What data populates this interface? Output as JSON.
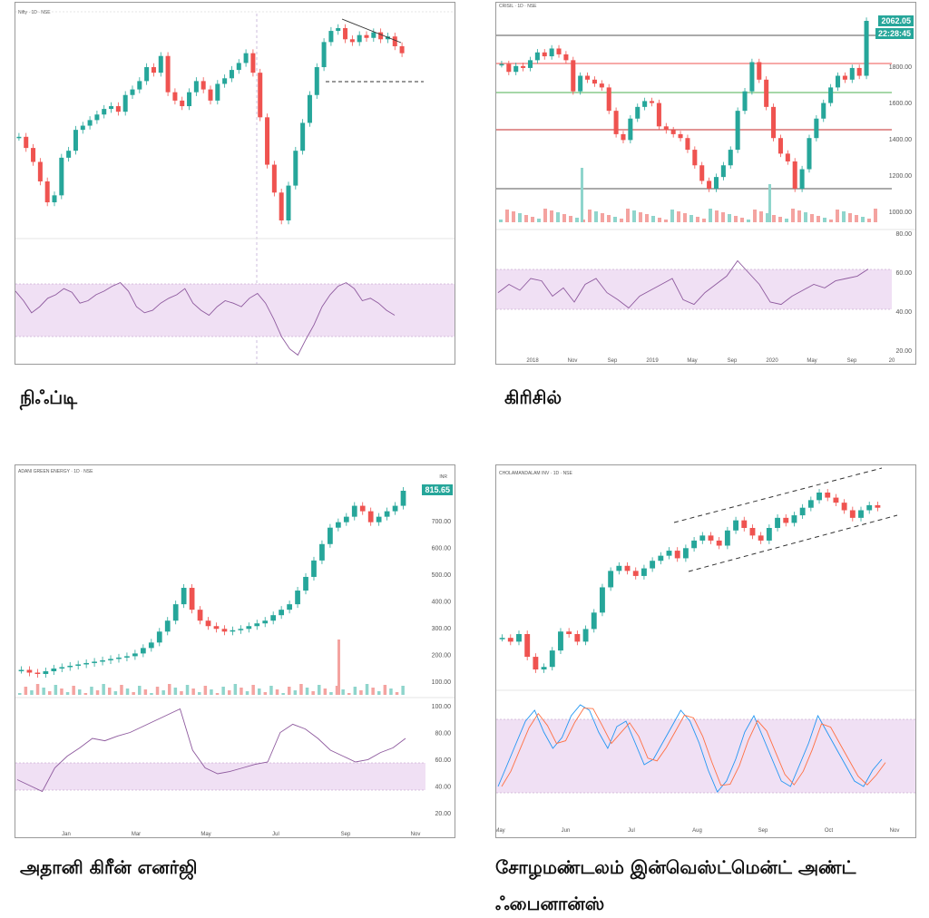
{
  "captions": {
    "p1": "நிஃப்டி",
    "p2": "கிரிசில்",
    "p3": "அதானி கிரீன் எனர்ஜி",
    "p4_line1": "சோழமண்டலம் இன்வெஸ்ட்மென்ட் அண்ட்",
    "p4_line2": "ஃபைனான்ஸ்"
  },
  "colors": {
    "up": "#26a69a",
    "down": "#ef5350",
    "rsi": "#8e5a9e",
    "band": "#f0e0f4"
  },
  "chart_data": [
    {
      "name": "nifty",
      "type": "candlestick",
      "header": "Nifty · 1D · NSE",
      "indicator": "RSI",
      "price": [
        11300,
        11220,
        11120,
        10980,
        10830,
        10880,
        11150,
        11200,
        11350,
        11380,
        11420,
        11460,
        11500,
        11520,
        11480,
        11600,
        11640,
        11700,
        11800,
        11760,
        11880,
        11620,
        11560,
        11520,
        11620,
        11700,
        11640,
        11560,
        11680,
        11720,
        11780,
        11830,
        11900,
        11760,
        11440,
        11100,
        10900,
        10700,
        10950,
        11200,
        11400,
        11600,
        11800,
        11980,
        12060,
        12080,
        12000,
        11980,
        12030,
        12010,
        12050,
        12000,
        12020,
        11950,
        11900
      ],
      "rsi": [
        58,
        50,
        40,
        45,
        52,
        55,
        60,
        57,
        48,
        50,
        55,
        58,
        62,
        65,
        58,
        45,
        40,
        42,
        48,
        52,
        55,
        60,
        48,
        42,
        38,
        45,
        50,
        48,
        45,
        52,
        56,
        48,
        35,
        20,
        10,
        5,
        18,
        30,
        45,
        55,
        62,
        65,
        60,
        50,
        52,
        48,
        42,
        38
      ],
      "rsi_range": [
        0,
        100
      ]
    },
    {
      "name": "crisil",
      "type": "candlestick",
      "header": "CRISIL · 1D · NSE",
      "indicator": "RSI",
      "last_price": "2062.05",
      "timer": "22:28:45",
      "y_ticks": [
        "1800.00",
        "1600.00",
        "1400.00",
        "1200.00",
        "1000.00"
      ],
      "rsi_ticks": [
        "80.00",
        "60.00",
        "40.00",
        "20.00"
      ],
      "x_ticks": [
        "2018",
        "Nov",
        "Sep",
        "2019",
        "May",
        "Sep",
        "2020",
        "May",
        "Sep",
        "20"
      ],
      "price": [
        1840,
        1800,
        1830,
        1820,
        1860,
        1900,
        1880,
        1920,
        1890,
        1860,
        1700,
        1780,
        1760,
        1740,
        1720,
        1600,
        1480,
        1450,
        1560,
        1620,
        1650,
        1640,
        1520,
        1500,
        1480,
        1460,
        1400,
        1320,
        1240,
        1200,
        1260,
        1320,
        1400,
        1600,
        1700,
        1850,
        1760,
        1620,
        1460,
        1380,
        1340,
        1200,
        1300,
        1460,
        1560,
        1640,
        1720,
        1780,
        1760,
        1820,
        1780,
        2062
      ],
      "rsi": [
        48,
        55,
        50,
        60,
        58,
        45,
        52,
        40,
        55,
        60,
        48,
        42,
        35,
        45,
        50,
        55,
        60,
        42,
        38,
        48,
        55,
        62,
        75,
        65,
        55,
        40,
        38,
        45,
        50,
        55,
        52,
        58,
        60,
        62,
        68
      ]
    },
    {
      "name": "adani-green",
      "type": "candlestick",
      "header": "ADANI GREEN ENERGY · 1D · NSE",
      "indicator": "RSI",
      "last_price": "815.65",
      "currency": "INR",
      "y_ticks": [
        "700.00",
        "600.00",
        "500.00",
        "400.00",
        "300.00",
        "200.00",
        "100.00"
      ],
      "rsi_ticks": [
        "100.00",
        "80.00",
        "60.00",
        "40.00",
        "20.00"
      ],
      "x_ticks": [
        "Jan",
        "Mar",
        "May",
        "Jul",
        "Sep",
        "Nov"
      ],
      "price": [
        160,
        150,
        145,
        155,
        165,
        170,
        175,
        180,
        185,
        190,
        195,
        200,
        205,
        210,
        220,
        240,
        260,
        300,
        340,
        400,
        460,
        380,
        340,
        320,
        310,
        300,
        305,
        310,
        320,
        330,
        340,
        360,
        380,
        400,
        450,
        500,
        560,
        620,
        680,
        700,
        720,
        760,
        740,
        700,
        720,
        740,
        760,
        815
      ],
      "rsi": [
        35,
        30,
        25,
        45,
        55,
        62,
        70,
        68,
        72,
        75,
        80,
        85,
        90,
        95,
        60,
        45,
        40,
        42,
        45,
        48,
        50,
        75,
        82,
        78,
        70,
        60,
        55,
        50,
        52,
        58,
        62,
        70
      ]
    },
    {
      "name": "cholamandalam",
      "type": "candlestick",
      "header": "CHOLAMANDALAM INV · 1D · NSE",
      "indicator": "Stoch",
      "x_ticks": [
        "May",
        "Jun",
        "Jul",
        "Aug",
        "Sep",
        "Oct",
        "Nov"
      ],
      "price": [
        175,
        172,
        178,
        160,
        150,
        152,
        165,
        180,
        178,
        172,
        182,
        195,
        215,
        228,
        232,
        228,
        224,
        230,
        236,
        240,
        244,
        238,
        246,
        252,
        256,
        252,
        248,
        260,
        268,
        262,
        256,
        252,
        262,
        270,
        266,
        272,
        278,
        284,
        290,
        286,
        282,
        276,
        270,
        276,
        280,
        278
      ],
      "stoch": [
        20,
        40,
        60,
        80,
        90,
        70,
        55,
        65,
        85,
        95,
        90,
        70,
        55,
        75,
        80,
        60,
        40,
        45,
        60,
        75,
        90,
        80,
        60,
        35,
        15,
        25,
        45,
        70,
        85,
        65,
        45,
        25,
        20,
        40,
        60,
        85,
        70,
        55,
        40,
        25,
        20,
        35,
        45
      ]
    }
  ]
}
